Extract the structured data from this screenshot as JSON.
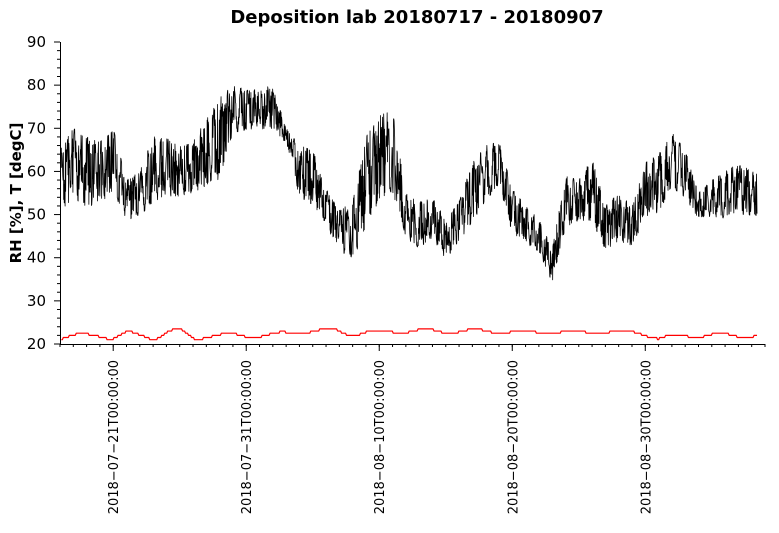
{
  "chart_data": {
    "type": "line",
    "title": "Deposition lab 20180717 - 20180907",
    "xlabel": "",
    "ylabel": "RH [%], T [degC]",
    "ylim": [
      20,
      90
    ],
    "xlim": [
      "2018-07-17",
      "2018-09-08"
    ],
    "y_ticks": [
      {
        "value": 20,
        "label": "20"
      },
      {
        "value": 30,
        "label": "30"
      },
      {
        "value": 40,
        "label": "40"
      },
      {
        "value": 50,
        "label": "50"
      },
      {
        "value": 60,
        "label": "60"
      },
      {
        "value": 70,
        "label": "70"
      },
      {
        "value": 80,
        "label": "80"
      },
      {
        "value": 90,
        "label": "90"
      }
    ],
    "x_ticks": [
      {
        "value": "2018-07-21",
        "label": "2018−07−21T00:00:00"
      },
      {
        "value": "2018-07-31",
        "label": "2018−07−31T00:00:00"
      },
      {
        "value": "2018-08-10",
        "label": "2018−08−10T00:00:00"
      },
      {
        "value": "2018-08-20",
        "label": "2018−08−20T00:00:00"
      },
      {
        "value": "2018-08-30",
        "label": "2018−08−30T00:00:00"
      }
    ],
    "grid": false,
    "legend": "none",
    "series": [
      {
        "color": "#000000",
        "x": [
          "2018-07-17",
          "2018-07-18",
          "2018-07-19",
          "2018-07-20",
          "2018-07-21",
          "2018-07-22",
          "2018-07-23",
          "2018-07-24",
          "2018-07-25",
          "2018-07-26",
          "2018-07-27",
          "2018-07-28",
          "2018-07-29",
          "2018-07-30",
          "2018-07-31",
          "2018-08-01",
          "2018-08-02",
          "2018-08-03",
          "2018-08-04",
          "2018-08-05",
          "2018-08-06",
          "2018-08-07",
          "2018-08-08",
          "2018-08-09",
          "2018-08-10",
          "2018-08-11",
          "2018-08-12",
          "2018-08-13",
          "2018-08-14",
          "2018-08-15",
          "2018-08-16",
          "2018-08-17",
          "2018-08-18",
          "2018-08-19",
          "2018-08-20",
          "2018-08-21",
          "2018-08-22",
          "2018-08-23",
          "2018-08-24",
          "2018-08-25",
          "2018-08-26",
          "2018-08-27",
          "2018-08-28",
          "2018-08-29",
          "2018-08-30",
          "2018-08-31",
          "2018-09-01",
          "2018-09-02",
          "2018-09-03",
          "2018-09-04",
          "2018-09-05",
          "2018-09-06",
          "2018-09-07"
        ],
        "min": [
          48,
          51,
          49,
          50,
          53,
          47,
          48,
          50,
          52,
          52,
          53,
          54,
          55,
          67,
          68,
          68,
          68,
          66,
          52,
          50,
          46,
          40,
          37,
          43,
          50,
          52,
          43,
          40,
          43,
          38,
          42,
          46,
          51,
          55,
          44,
          42,
          40,
          33,
          45,
          47,
          46,
          40,
          42,
          41,
          47,
          48,
          54,
          52,
          48,
          48,
          47,
          48,
          48
        ],
        "max": [
          65,
          70,
          68,
          67,
          70,
          58,
          60,
          68,
          68,
          66,
          67,
          72,
          77,
          80,
          79,
          79,
          80,
          70,
          66,
          65,
          56,
          51,
          53,
          68,
          73,
          74,
          55,
          53,
          54,
          49,
          53,
          62,
          66,
          67,
          56,
          52,
          49,
          42,
          59,
          58,
          63,
          52,
          55,
          52,
          62,
          64,
          69,
          65,
          55,
          58,
          60,
          62,
          60
        ]
      },
      {
        "color": "#ff0000",
        "x": [
          "2018-07-17",
          "2018-07-18",
          "2018-07-19",
          "2018-07-20",
          "2018-07-21",
          "2018-07-22",
          "2018-07-23",
          "2018-07-24",
          "2018-07-25",
          "2018-07-26",
          "2018-07-27",
          "2018-07-28",
          "2018-07-29",
          "2018-07-30",
          "2018-07-31",
          "2018-08-01",
          "2018-08-02",
          "2018-08-03",
          "2018-08-04",
          "2018-08-05",
          "2018-08-06",
          "2018-08-07",
          "2018-08-08",
          "2018-08-09",
          "2018-08-10",
          "2018-08-11",
          "2018-08-12",
          "2018-08-13",
          "2018-08-14",
          "2018-08-15",
          "2018-08-16",
          "2018-08-17",
          "2018-08-18",
          "2018-08-19",
          "2018-08-20",
          "2018-08-21",
          "2018-08-22",
          "2018-08-23",
          "2018-08-24",
          "2018-08-25",
          "2018-08-26",
          "2018-08-27",
          "2018-08-28",
          "2018-08-29",
          "2018-08-30",
          "2018-08-31",
          "2018-09-01",
          "2018-09-02",
          "2018-09-03",
          "2018-09-04",
          "2018-09-05",
          "2018-09-06",
          "2018-09-07"
        ],
        "min": [
          21,
          20.5,
          21,
          21.5,
          21,
          21.5,
          21,
          21,
          21.5,
          21,
          20.5,
          21.5,
          21.5,
          21.5,
          21.5,
          21.5,
          21.5,
          22,
          22.5,
          22.5,
          22.5,
          22,
          22,
          21.5,
          22,
          22.5,
          22.5,
          22.5,
          22.5,
          22.5,
          22.5,
          22,
          22.5,
          22.5,
          22.5,
          22.5,
          22.5,
          22.5,
          22.5,
          22.5,
          22.5,
          22.5,
          22.5,
          22.5,
          22,
          20.5,
          20.5,
          21.5,
          21.5,
          21.5,
          21.5,
          21.5,
          21.5
        ],
        "max": [
          23.5,
          22.5,
          22.5,
          23,
          22,
          23,
          22.5,
          23.5,
          24,
          23.5,
          22.5,
          22.5,
          22.5,
          22.5,
          22.5,
          22.5,
          22.5,
          23,
          23.5,
          23.5,
          23.5,
          24,
          24,
          23.5,
          23,
          23.5,
          23.5,
          23.5,
          23.5,
          23.5,
          23.5,
          23.5,
          23.5,
          23.5,
          23,
          23,
          23,
          23,
          23,
          23,
          23,
          23,
          23,
          23,
          23.5,
          22,
          22,
          22.5,
          22.5,
          22.5,
          22.5,
          22.5,
          22.5
        ]
      }
    ]
  }
}
